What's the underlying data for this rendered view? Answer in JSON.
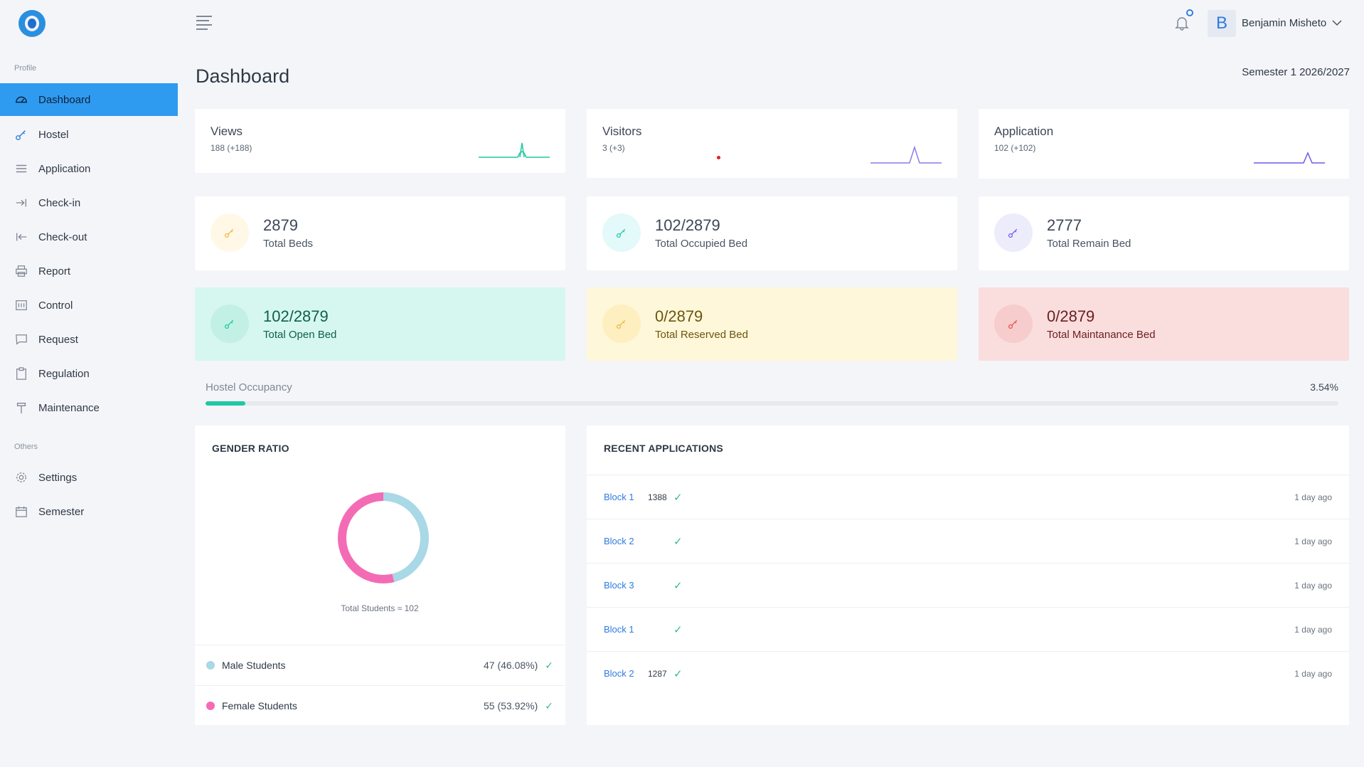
{
  "sidebar": {
    "section_profile": "Profile",
    "section_others": "Others",
    "items": [
      {
        "label": "Dashboard",
        "icon": "dashboard-icon"
      },
      {
        "label": "Hostel",
        "icon": "key-icon"
      },
      {
        "label": "Application",
        "icon": "list-icon"
      },
      {
        "label": "Check-in",
        "icon": "check-in-icon"
      },
      {
        "label": "Check-out",
        "icon": "check-out-icon"
      },
      {
        "label": "Report",
        "icon": "printer-icon"
      },
      {
        "label": "Control",
        "icon": "control-icon"
      },
      {
        "label": "Request",
        "icon": "chat-icon"
      },
      {
        "label": "Regulation",
        "icon": "clipboard-icon"
      },
      {
        "label": "Maintenance",
        "icon": "hammer-icon"
      }
    ],
    "others": [
      {
        "label": "Settings",
        "icon": "gear-icon"
      },
      {
        "label": "Semester",
        "icon": "calendar-icon"
      }
    ]
  },
  "header": {
    "user_initial": "B",
    "user_name": "Benjamin Misheto"
  },
  "page": {
    "title": "Dashboard",
    "semester": "Semester 1 2026/2027"
  },
  "stats": [
    {
      "title": "Views",
      "sub": "188 (+188)",
      "color": "#1ec9a4"
    },
    {
      "title": "Visitors",
      "sub": "3 (+3)",
      "color": "#8d7ce8"
    },
    {
      "title": "Application",
      "sub": "102 (+102)",
      "color": "#6a5ce8"
    }
  ],
  "kpis": [
    {
      "value": "2879",
      "label": "Total Beds",
      "icon_bg": "#fff8e6",
      "icon_color": "#f3b63f"
    },
    {
      "value": "102/2879",
      "label": "Total Occupied Bed",
      "icon_bg": "#e4f9f9",
      "icon_color": "#1ec9a4"
    },
    {
      "value": "2777",
      "label": "Total Remain Bed",
      "icon_bg": "#ececfb",
      "icon_color": "#6a5ce8"
    },
    {
      "value": "102/2879",
      "label": "Total Open Bed",
      "card_bg": "#d6f7ef",
      "icon_bg": "#c2f0e4",
      "icon_color": "#1ec9a4",
      "text_color": "#0e5f4d"
    },
    {
      "value": "0/2879",
      "label": "Total Reserved Bed",
      "card_bg": "#fff7d9",
      "icon_bg": "#fdefc0",
      "icon_color": "#f3b63f",
      "text_color": "#6b5510"
    },
    {
      "value": "0/2879",
      "label": "Total Maintanance Bed",
      "card_bg": "#fadede",
      "icon_bg": "#f7cccc",
      "icon_color": "#e5534b",
      "text_color": "#6b1e1e"
    }
  ],
  "occupancy": {
    "label": "Hostel Occupancy",
    "value": "3.54%",
    "fraction": 0.0354
  },
  "gender": {
    "title": "GENDER RATIO",
    "total": "Total Students ≈ 102",
    "male": {
      "label": "Male Students",
      "value": "47 (46.08%)",
      "pct": 46.08,
      "color": "#a9d8e6"
    },
    "female": {
      "label": "Female Students",
      "value": "55 (53.92%)",
      "pct": 53.92,
      "color": "#f46bb5"
    }
  },
  "recent": {
    "title": "RECENT APPLICATIONS",
    "rows": [
      {
        "block": "Block 1",
        "num": "1388",
        "time": "1 day ago"
      },
      {
        "block": "Block 2",
        "num": "",
        "time": "1 day ago"
      },
      {
        "block": "Block 3",
        "num": "",
        "time": "1 day ago"
      },
      {
        "block": "Block 1",
        "num": "",
        "time": "1 day ago"
      },
      {
        "block": "Block 2",
        "num": "1287",
        "time": "1 day ago"
      }
    ]
  }
}
